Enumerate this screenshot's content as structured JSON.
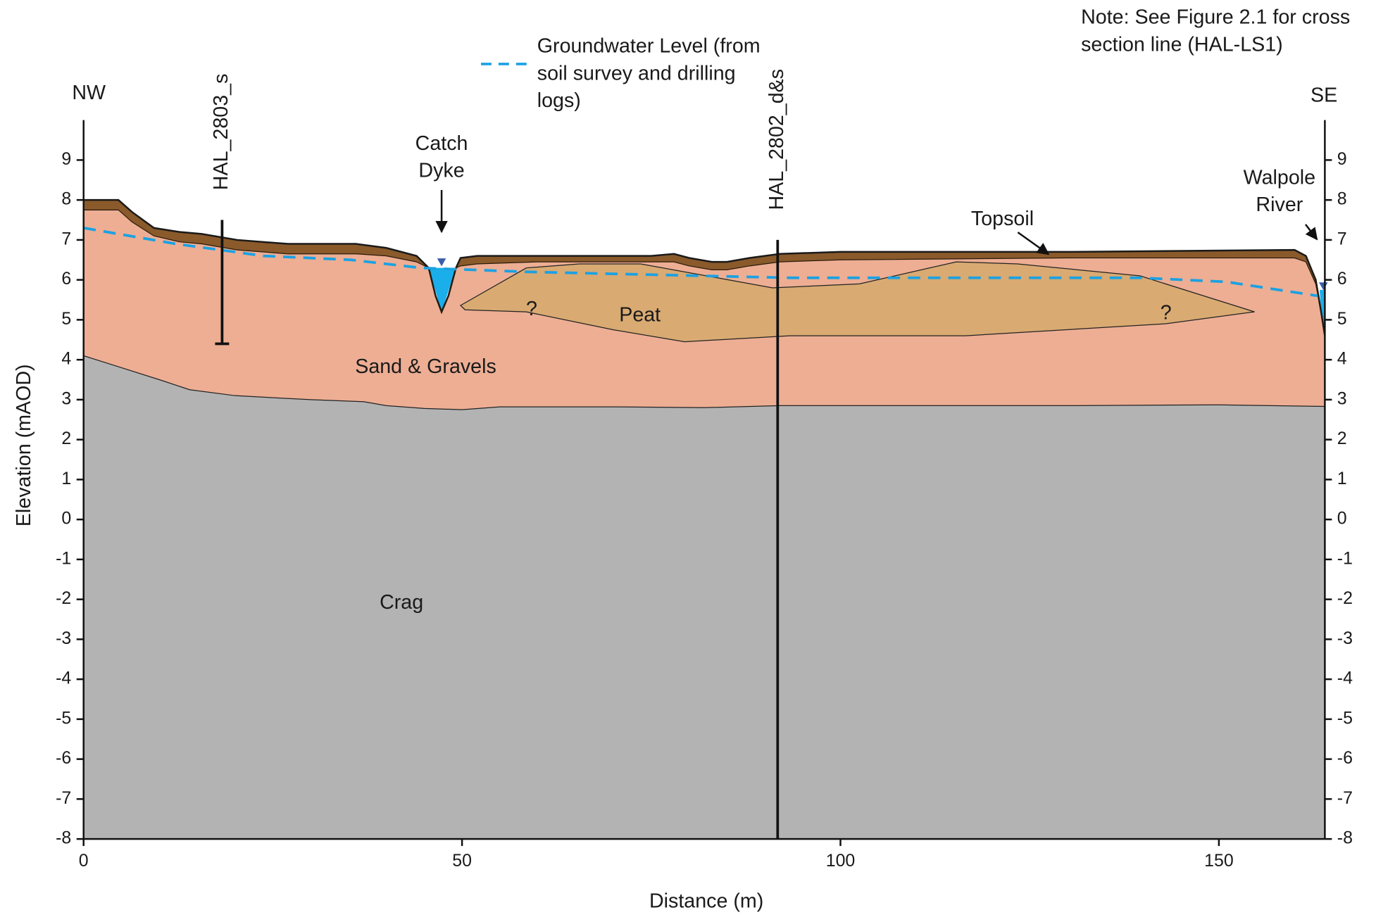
{
  "chart_data": {
    "type": "cross-section",
    "x_label": "Distance (m)",
    "y_label": "Elevation (mAOD)",
    "note": "Note: See Figure 2.1 for cross section line (HAL-LS1)",
    "directions": [
      "NW",
      "SE"
    ],
    "xlim": [
      0,
      164
    ],
    "ylim": [
      -8,
      10
    ],
    "xticks": [
      0,
      50,
      100,
      150
    ],
    "yticks": [
      -8,
      -7,
      -6,
      -5,
      -4,
      -3,
      -2,
      -1,
      0,
      1,
      2,
      3,
      4,
      5,
      6,
      7,
      8,
      9
    ],
    "series": [
      {
        "name": "Topsoil",
        "color": "#8a5a2b",
        "x": [
          0,
          4.6,
          6.4,
          9.3,
          12.7,
          15.6,
          20.3,
          27,
          36,
          40,
          44,
          45.6,
          46.5,
          47.3,
          48.2,
          49.2,
          49.8,
          52,
          60,
          75,
          78,
          80,
          83,
          85,
          88,
          92,
          100,
          130,
          160,
          161.5,
          162.8,
          163.5,
          164
        ],
        "values": [
          8.0,
          8.0,
          7.7,
          7.3,
          7.2,
          7.15,
          7.0,
          6.9,
          6.9,
          6.8,
          6.6,
          6.3,
          5.6,
          5.2,
          5.6,
          6.3,
          6.55,
          6.6,
          6.6,
          6.6,
          6.65,
          6.55,
          6.45,
          6.45,
          6.55,
          6.65,
          6.7,
          6.7,
          6.75,
          6.6,
          6.0,
          5.2,
          4.6
        ]
      },
      {
        "name": "Sand & Gravels",
        "color": "#edae94",
        "x": [
          0,
          4.6,
          6.4,
          9.3,
          12.7,
          15.6,
          20.3,
          27,
          36,
          40,
          44,
          45.6,
          46.5,
          47.3,
          48.2,
          49.2,
          49.8,
          52,
          60,
          75,
          78,
          80,
          83,
          85,
          88,
          92,
          100,
          130,
          160,
          161.5,
          162.8,
          163.5,
          164
        ],
        "values": [
          7.75,
          7.75,
          7.45,
          7.1,
          6.95,
          6.9,
          6.75,
          6.65,
          6.65,
          6.6,
          6.45,
          6.3,
          5.6,
          5.2,
          5.6,
          6.3,
          6.35,
          6.4,
          6.45,
          6.45,
          6.45,
          6.35,
          6.25,
          6.25,
          6.35,
          6.45,
          6.5,
          6.55,
          6.55,
          6.45,
          5.9,
          5.2,
          4.6
        ]
      },
      {
        "name": "Crag",
        "color": "#b3b3b3",
        "x": [
          0,
          5,
          10,
          14,
          20,
          30,
          37,
          40,
          45,
          50,
          55,
          70,
          82,
          92,
          110,
          130,
          150,
          164
        ],
        "values": [
          4.1,
          3.8,
          3.5,
          3.25,
          3.1,
          3.0,
          2.95,
          2.85,
          2.78,
          2.75,
          2.82,
          2.82,
          2.8,
          2.85,
          2.85,
          2.85,
          2.87,
          2.83
        ]
      },
      {
        "name": "Peat",
        "color": "#d9aa72",
        "x": [
          49.8,
          58.5,
          65.5,
          73.6,
          85.2,
          91,
          102.5,
          115.3,
          123.4,
          139.6,
          154.7,
          143,
          116.5,
          93.3,
          79.4,
          70,
          58.5,
          50.4
        ],
        "values": [
          5.36,
          6.3,
          6.4,
          6.4,
          6.0,
          5.8,
          5.9,
          6.45,
          6.4,
          6.1,
          5.2,
          4.9,
          4.6,
          4.6,
          4.45,
          4.75,
          5.2,
          5.25
        ]
      },
      {
        "name": "Groundwater Level (from soil survey and drilling logs)",
        "color": "#1ba1e2",
        "x": [
          0,
          12.2,
          23.8,
          35.3,
          44.6,
          58.5,
          93.3,
          139.6,
          151,
          163
        ],
        "values": [
          7.3,
          6.9,
          6.6,
          6.5,
          6.3,
          6.2,
          6.05,
          6.05,
          5.95,
          5.6
        ]
      }
    ],
    "water": [
      {
        "label": "Catch Dyke",
        "color": "#1aaeea",
        "x": [
          45.6,
          47.3,
          49.2
        ],
        "values": [
          6.3,
          5.2,
          6.3
        ]
      },
      {
        "label": "Walpole River",
        "color": "#1aaeea",
        "x": [
          163.3,
          164,
          164,
          163.5
        ],
        "values": [
          5.75,
          5.75,
          4.6,
          5.2
        ]
      }
    ],
    "boreholes": [
      {
        "name": "HAL_2803_s",
        "x": 18.3,
        "top": 7.5,
        "bottom": 4.4
      },
      {
        "name": "HAL_2802_d&s",
        "x": 91.7,
        "top": 7.0,
        "bottom": -8
      }
    ],
    "uncertain_marks": [
      "?",
      "?"
    ]
  }
}
